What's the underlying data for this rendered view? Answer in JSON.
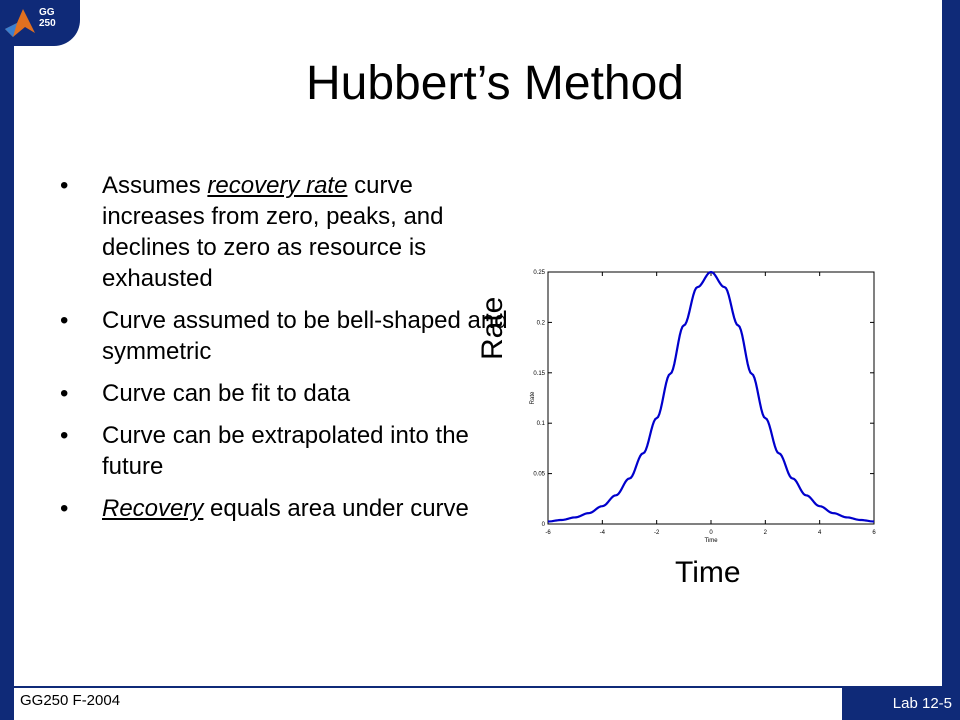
{
  "logo": {
    "line1": "GG",
    "line2": "250"
  },
  "title": "Hubbert’s Method",
  "bullets": [
    {
      "parts": [
        {
          "text": "Assumes "
        },
        {
          "text": "recovery rate",
          "em": true
        },
        {
          "text": " curve increases from zero, peaks, and declines to zero as resource is exhausted"
        }
      ]
    },
    {
      "parts": [
        {
          "text": "Curve assumed to be bell-shaped and symmetric"
        }
      ]
    },
    {
      "parts": [
        {
          "text": "Curve can be fit to data"
        }
      ]
    },
    {
      "parts": [
        {
          "text": "Curve can be extrapolated into the future"
        }
      ]
    },
    {
      "parts": [
        {
          "text": "Recovery",
          "em": true
        },
        {
          "text": " equals area under curve"
        }
      ]
    }
  ],
  "labels": {
    "rate": "Rate",
    "time": "Time"
  },
  "footer": {
    "left": "GG250 F-2004",
    "right": "Lab 12-5"
  },
  "colors": {
    "accent": "#0f2a78",
    "curve": "#0000cc"
  },
  "chart_data": {
    "type": "line",
    "xlabel": "Time",
    "ylabel": "Rate",
    "xlim": [
      -6,
      6
    ],
    "ylim": [
      0,
      0.25
    ],
    "xticks": [
      "-6",
      "-4",
      "-2",
      "0",
      "2",
      "4",
      "6"
    ],
    "yticks": [
      "0",
      "0.05",
      "0.1",
      "0.15",
      "0.2",
      "0.25"
    ],
    "series": [
      {
        "x": [
          -6,
          -5.5,
          -5,
          -4.5,
          -4,
          -3.5,
          -3,
          -2.5,
          -2,
          -1.5,
          -1,
          -0.5,
          0,
          0.5,
          1,
          1.5,
          2,
          2.5,
          3,
          3.5,
          4,
          4.5,
          5,
          5.5,
          6
        ],
        "y": [
          0.0025,
          0.004,
          0.0066,
          0.0108,
          0.0177,
          0.0285,
          0.0452,
          0.0701,
          0.105,
          0.149,
          0.197,
          0.235,
          0.25,
          0.235,
          0.197,
          0.149,
          0.105,
          0.0701,
          0.0452,
          0.0285,
          0.0177,
          0.0108,
          0.0066,
          0.004,
          0.0025
        ]
      }
    ]
  }
}
